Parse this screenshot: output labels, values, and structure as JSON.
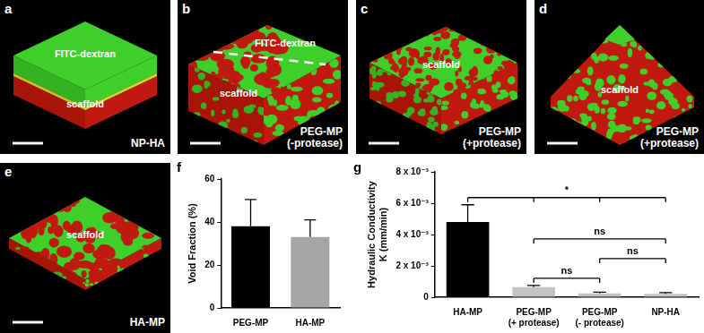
{
  "panels": [
    {
      "letter": "a",
      "texts": [
        "FITC-dextran",
        "scaffold"
      ],
      "label": "NP-HA"
    },
    {
      "letter": "b",
      "texts": [
        "FITC-dextran",
        "scaffold"
      ],
      "label": "PEG-MP\n(-protease)"
    },
    {
      "letter": "c",
      "texts": [
        "scaffold"
      ],
      "label": "PEG-MP\n(+protease)"
    },
    {
      "letter": "d",
      "texts": [
        "scaffold"
      ],
      "label": "PEG-MP\n(+protease)"
    },
    {
      "letter": "e",
      "texts": [
        "scaffold"
      ],
      "label": "HA-MP"
    }
  ],
  "chart_data": [
    {
      "panel": "f",
      "type": "bar",
      "categories": [
        "PEG-MP",
        "HA-MP"
      ],
      "values": [
        38,
        33
      ],
      "errors": [
        12.5,
        8
      ],
      "colors": [
        "#000000",
        "#a6a6a6"
      ],
      "y_label": "Void Fraction (%)",
      "ylim": [
        0,
        60
      ],
      "yticks": [
        0,
        20,
        40,
        60
      ],
      "grid": false
    },
    {
      "panel": "g",
      "type": "bar",
      "categories": [
        "HA-MP",
        "PEG-MP\n(+ protease)",
        "PEG-MP\n(- protease)",
        "NP-HA"
      ],
      "values": [
        0.0048,
        0.00065,
        0.00025,
        0.00022
      ],
      "errors": [
        0.0011,
        0.0001,
        7e-05,
        7e-05
      ],
      "colors": [
        "#000000",
        "#c4c4c4",
        "#c4c4c4",
        "#c4c4c4"
      ],
      "y_label": "Hydraulic Conductivity\nK (mm/min)",
      "ylim": [
        0,
        0.008
      ],
      "yticks": [
        0,
        {
          "value": 0.002,
          "label": "2 x 10⁻³"
        },
        {
          "value": 0.004,
          "label": "4 x 10⁻³"
        },
        {
          "value": 0.006,
          "label": "6 x 10⁻³"
        },
        {
          "value": 0.008,
          "label": "8 x 10⁻³"
        }
      ],
      "grid": false,
      "annotations": [
        {
          "label": "ns",
          "between": [
            "PEG-MP\n(+ protease)",
            "PEG-MP\n(- protease)"
          ]
        },
        {
          "label": "ns",
          "between": [
            "PEG-MP\n(- protease)",
            "NP-HA"
          ]
        },
        {
          "label": "ns",
          "between": [
            "PEG-MP\n(+ protease)",
            "NP-HA"
          ]
        },
        {
          "label": "*",
          "between": [
            "HA-MP",
            "PEG-MP\n(+ protease)",
            "PEG-MP\n(- protease)",
            "NP-HA"
          ]
        }
      ]
    }
  ]
}
